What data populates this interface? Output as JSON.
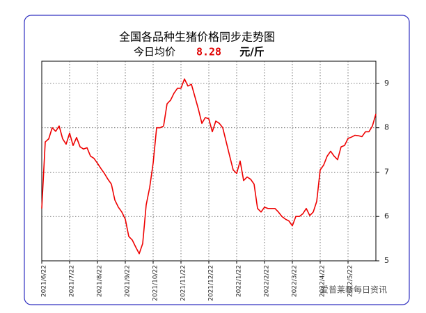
{
  "chart_data": {
    "type": "line",
    "title": "全国各品种生猪价格同步走势图",
    "current_price": {
      "label": "今日均价",
      "value": 8.28,
      "unit": "元/斤"
    },
    "watermark": "爱普莱新每日资讯",
    "color": "#ee0000",
    "grid": true,
    "ylim": [
      5,
      9.5
    ],
    "yticks": [
      5,
      6,
      7,
      8,
      9
    ],
    "categories": [
      "2021/6/22",
      null,
      null,
      null,
      null,
      null,
      null,
      null,
      "2021/7/22",
      null,
      null,
      null,
      null,
      null,
      null,
      null,
      "2021/8/22",
      null,
      null,
      null,
      null,
      null,
      null,
      null,
      "2021/9/22",
      null,
      null,
      null,
      null,
      null,
      null,
      null,
      "2021/10/22",
      null,
      null,
      null,
      null,
      null,
      null,
      null,
      "2021/11/22",
      null,
      null,
      null,
      null,
      null,
      null,
      null,
      "2021/12/22",
      null,
      null,
      null,
      null,
      null,
      null,
      null,
      "2022/1/22",
      null,
      null,
      null,
      null,
      null,
      null,
      null,
      "2022/2/22",
      null,
      null,
      null,
      null,
      null,
      null,
      null,
      "2022/3/22",
      null,
      null,
      null,
      null,
      null,
      null,
      null,
      "2022/4/22",
      null,
      null,
      null,
      null,
      null,
      null,
      null,
      "2022/5/22",
      null,
      null,
      null,
      null,
      null,
      null,
      null,
      null
    ],
    "values": [
      6.18,
      7.68,
      7.75,
      8.0,
      7.92,
      8.04,
      7.75,
      7.63,
      7.88,
      7.6,
      7.78,
      7.57,
      7.52,
      7.55,
      7.36,
      7.31,
      7.2,
      7.08,
      6.97,
      6.84,
      6.73,
      6.37,
      6.21,
      6.1,
      5.94,
      5.55,
      5.47,
      5.31,
      5.16,
      5.39,
      6.26,
      6.65,
      7.2,
      8.0,
      8.0,
      8.04,
      8.54,
      8.62,
      8.78,
      8.89,
      8.89,
      9.1,
      8.94,
      8.98,
      8.7,
      8.42,
      8.1,
      8.23,
      8.2,
      7.91,
      8.15,
      8.1,
      8.0,
      7.68,
      7.36,
      7.05,
      6.97,
      7.25,
      6.81,
      6.89,
      6.84,
      6.73,
      6.18,
      6.1,
      6.21,
      6.18,
      6.18,
      6.18,
      6.1,
      6.0,
      5.94,
      5.9,
      5.79,
      6.0,
      6.0,
      6.06,
      6.18,
      6.02,
      6.1,
      6.34,
      7.05,
      7.16,
      7.36,
      7.47,
      7.36,
      7.28,
      7.57,
      7.6,
      7.76,
      7.79,
      7.83,
      7.82,
      7.8,
      7.91,
      7.91,
      8.04,
      8.31
    ]
  }
}
